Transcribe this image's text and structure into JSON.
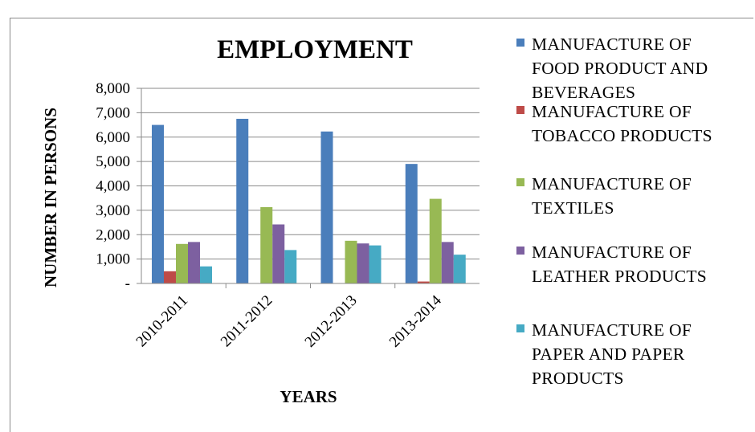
{
  "chart_data": {
    "type": "bar",
    "title": "EMPLOYMENT",
    "xlabel": "YEARS",
    "ylabel": "NUMBER  IN PERSONS",
    "ylim": [
      0,
      8000
    ],
    "yticks": [
      0,
      1000,
      2000,
      3000,
      4000,
      5000,
      6000,
      7000,
      8000
    ],
    "ytick_labels": [
      "-",
      "1,000",
      "2,000",
      "3,000",
      "4,000",
      "5,000",
      "6,000",
      "7,000",
      "8,000"
    ],
    "categories": [
      "2010-2011",
      "2011-2012",
      "2012-2013",
      "2013-2014"
    ],
    "grid": true,
    "legend_position": "right",
    "series": [
      {
        "name": "MANUFACTURE OF FOOD PRODUCT AND BEVERAGES",
        "legend_lines": [
          "MANUFACTURE OF",
          "FOOD PRODUCT AND",
          "BEVERAGES"
        ],
        "color": "#4a7ebb",
        "values": [
          6500,
          6750,
          6230,
          4900
        ]
      },
      {
        "name": "MANUFACTURE OF TOBACCO PRODUCTS",
        "legend_lines": [
          "MANUFACTURE OF",
          "TOBACCO PRODUCTS"
        ],
        "color": "#be4b48",
        "values": [
          500,
          0,
          0,
          80
        ]
      },
      {
        "name": "MANUFACTURE OF TEXTILES",
        "legend_lines": [
          "MANUFACTURE OF",
          "TEXTILES"
        ],
        "color": "#98b954",
        "values": [
          1620,
          3130,
          1750,
          3470
        ]
      },
      {
        "name": "MANUFACTURE OF LEATHER PRODUCTS",
        "legend_lines": [
          "MANUFACTURE OF",
          "LEATHER PRODUCTS"
        ],
        "color": "#7d60a0",
        "values": [
          1700,
          2420,
          1640,
          1700
        ]
      },
      {
        "name": "MANUFACTURE OF PAPER AND PAPER PRODUCTS",
        "legend_lines": [
          "MANUFACTURE OF",
          "PAPER AND PAPER",
          "PRODUCTS"
        ],
        "color": "#46aac4",
        "values": [
          700,
          1370,
          1560,
          1180
        ]
      }
    ]
  }
}
